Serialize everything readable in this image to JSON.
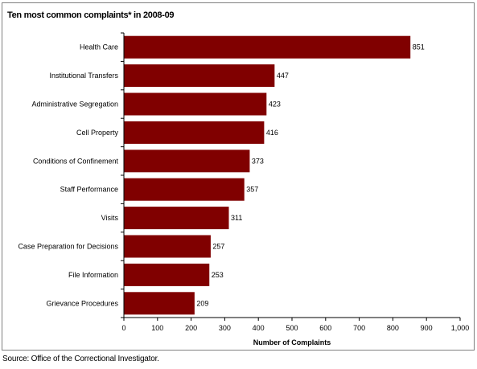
{
  "page": {
    "source_note": "Source:  Office of the Correctional Investigator."
  },
  "chart_data": {
    "type": "bar",
    "orientation": "horizontal",
    "title": "Ten most common complaints* in 2008-09",
    "xlabel": "Number of Complaints",
    "ylabel": "",
    "categories": [
      "Health Care",
      "Institutional Transfers",
      "Administrative Segregation",
      "Cell Property",
      "Conditions of Confinement",
      "Staff Performance",
      "Visits",
      "Case Preparation for Decisions",
      "File Information",
      "Grievance Procedures"
    ],
    "values": [
      851,
      447,
      423,
      416,
      373,
      357,
      311,
      257,
      253,
      209
    ],
    "data_labels": [
      "851",
      "447",
      "423",
      "416",
      "373",
      "357",
      "311",
      "257",
      "253",
      "209"
    ],
    "xlim": [
      0,
      1000
    ],
    "x_ticks": [
      0,
      100,
      200,
      300,
      400,
      500,
      600,
      700,
      800,
      900,
      1000
    ],
    "x_tick_labels": [
      "0",
      "100",
      "200",
      "300",
      "400",
      "500",
      "600",
      "700",
      "800",
      "900",
      "1,000"
    ],
    "bar_color": "#800000",
    "grid": false,
    "legend": "none"
  }
}
